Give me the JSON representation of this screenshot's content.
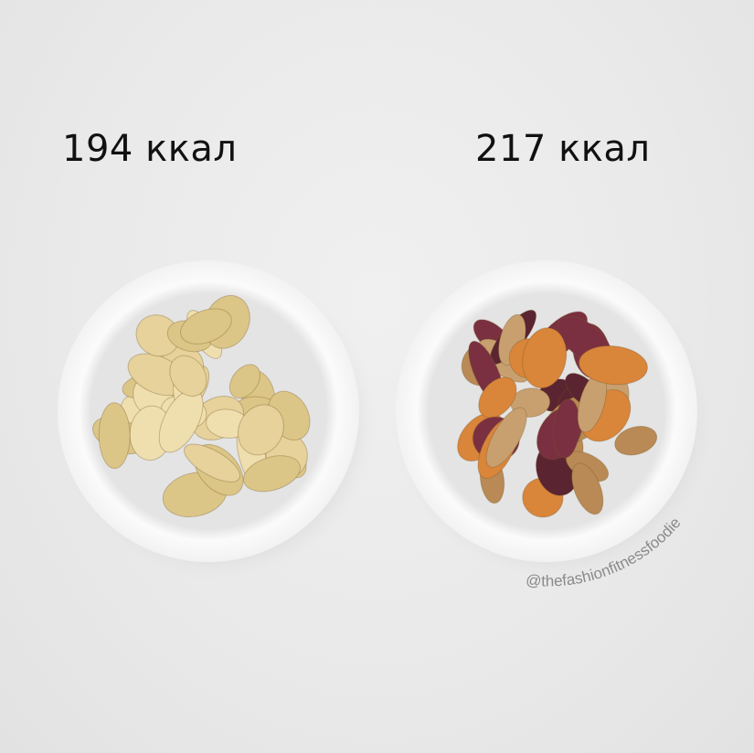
{
  "left": {
    "calories_label": "194 ккал",
    "food": "potato chips"
  },
  "right": {
    "calories_label": "217 ккал",
    "food": "vegetable chips"
  },
  "watermark": "@thefashionfitnessfoodie",
  "colors": {
    "background": "#ebebeb",
    "bowl": "#f7f7f7",
    "potato_chip": "#e6d29a",
    "beet_chip": "#5a2430",
    "carrot_chip": "#d9853a",
    "parsnip_chip": "#c8a070"
  }
}
